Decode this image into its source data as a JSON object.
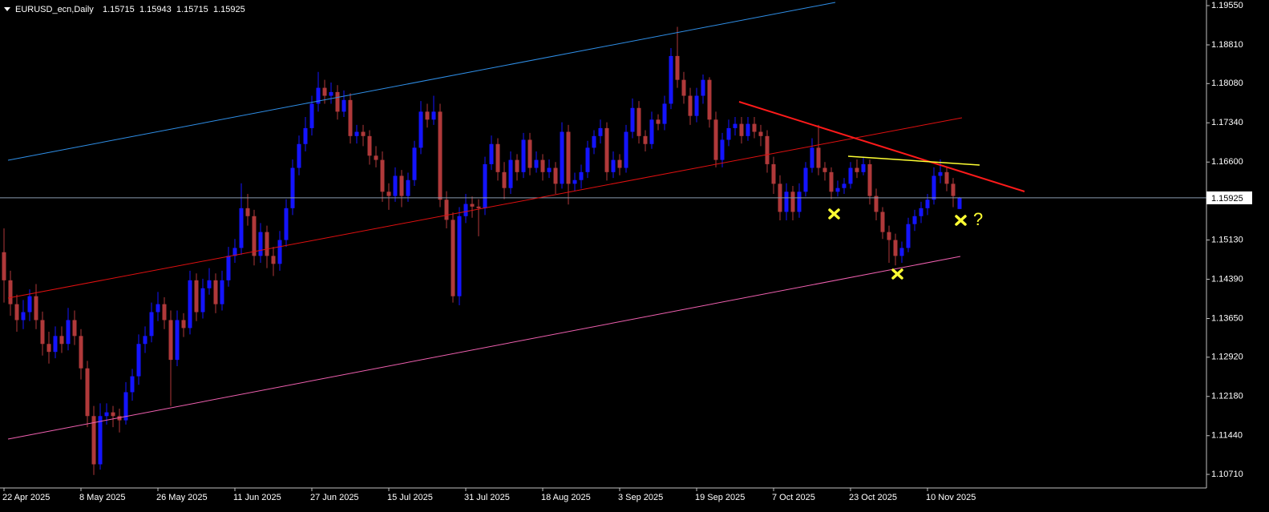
{
  "chart_data": {
    "type": "candlestick",
    "title": "EURUSD_ecn,Daily",
    "annotation": "?",
    "up_color": "#1414ff",
    "down_color": "#b0393a",
    "price_line_color": "#8a9bb0",
    "categories": [
      "22 Apr 2025",
      null,
      null,
      null,
      null,
      null,
      null,
      null,
      null,
      null,
      null,
      null,
      "8 May 2025",
      null,
      null,
      null,
      null,
      null,
      null,
      null,
      null,
      null,
      null,
      null,
      "26 May 2025",
      null,
      null,
      null,
      null,
      null,
      null,
      null,
      null,
      null,
      null,
      null,
      "11 Jun 2025",
      null,
      null,
      null,
      null,
      null,
      null,
      null,
      null,
      null,
      null,
      null,
      "27 Jun 2025",
      null,
      null,
      null,
      null,
      null,
      null,
      null,
      null,
      null,
      null,
      null,
      "15 Jul 2025",
      null,
      null,
      null,
      null,
      null,
      null,
      null,
      null,
      null,
      null,
      null,
      "31 Jul 2025",
      null,
      null,
      null,
      null,
      null,
      null,
      null,
      null,
      null,
      null,
      null,
      "18 Aug 2025",
      null,
      null,
      null,
      null,
      null,
      null,
      null,
      null,
      null,
      null,
      null,
      "3 Sep 2025",
      null,
      null,
      null,
      null,
      null,
      null,
      null,
      null,
      null,
      null,
      null,
      "19 Sep 2025",
      null,
      null,
      null,
      null,
      null,
      null,
      null,
      null,
      null,
      null,
      null,
      "7 Oct 2025",
      null,
      null,
      null,
      null,
      null,
      null,
      null,
      null,
      null,
      null,
      null,
      "23 Oct 2025",
      null,
      null,
      null,
      null,
      null,
      null,
      null,
      null,
      null,
      null,
      null,
      "10 Nov 2025",
      null,
      null,
      null,
      null,
      null
    ],
    "candles": [
      [
        1.149,
        1.1535,
        1.1395,
        1.1437
      ],
      [
        1.1437,
        1.1455,
        1.137,
        1.1392
      ],
      [
        1.1392,
        1.141,
        1.134,
        1.1362
      ],
      [
        1.1362,
        1.14,
        1.1345,
        1.1377
      ],
      [
        1.1377,
        1.142,
        1.136,
        1.1407
      ],
      [
        1.1407,
        1.143,
        1.1345,
        1.1362
      ],
      [
        1.1362,
        1.1378,
        1.1295,
        1.1317
      ],
      [
        1.1317,
        1.134,
        1.128,
        1.1302
      ],
      [
        1.1302,
        1.135,
        1.129,
        1.1332
      ],
      [
        1.1332,
        1.135,
        1.13,
        1.1317
      ],
      [
        1.1317,
        1.1385,
        1.1305,
        1.1362
      ],
      [
        1.1362,
        1.138,
        1.1315,
        1.1332
      ],
      [
        1.1332,
        1.1345,
        1.125,
        1.1271
      ],
      [
        1.1271,
        1.1285,
        1.116,
        1.1181
      ],
      [
        1.1181,
        1.12,
        1.107,
        1.109
      ],
      [
        1.109,
        1.1205,
        1.108,
        1.1181
      ],
      [
        1.1181,
        1.1205,
        1.1165,
        1.1188
      ],
      [
        1.1188,
        1.12,
        1.116,
        1.1181
      ],
      [
        1.1181,
        1.1195,
        1.115,
        1.1173
      ],
      [
        1.1173,
        1.1245,
        1.1165,
        1.1226
      ],
      [
        1.1226,
        1.127,
        1.121,
        1.1256
      ],
      [
        1.1256,
        1.1335,
        1.124,
        1.1317
      ],
      [
        1.1317,
        1.135,
        1.13,
        1.1332
      ],
      [
        1.1332,
        1.1395,
        1.132,
        1.1377
      ],
      [
        1.1377,
        1.1415,
        1.136,
        1.1392
      ],
      [
        1.1392,
        1.1405,
        1.1345,
        1.1362
      ],
      [
        1.1362,
        1.138,
        1.12,
        1.1287
      ],
      [
        1.1287,
        1.138,
        1.1275,
        1.1362
      ],
      [
        1.1362,
        1.1375,
        1.133,
        1.1347
      ],
      [
        1.1347,
        1.1455,
        1.1335,
        1.1437
      ],
      [
        1.1437,
        1.145,
        1.136,
        1.1377
      ],
      [
        1.1377,
        1.144,
        1.1365,
        1.1422
      ],
      [
        1.1422,
        1.146,
        1.141,
        1.1437
      ],
      [
        1.1437,
        1.145,
        1.1375,
        1.1392
      ],
      [
        1.1392,
        1.1455,
        1.138,
        1.1437
      ],
      [
        1.1437,
        1.15,
        1.1425,
        1.1483
      ],
      [
        1.1483,
        1.1515,
        1.147,
        1.1498
      ],
      [
        1.1498,
        1.162,
        1.1485,
        1.1573
      ],
      [
        1.1573,
        1.16,
        1.154,
        1.1558
      ],
      [
        1.1558,
        1.157,
        1.1465,
        1.1483
      ],
      [
        1.1483,
        1.1545,
        1.147,
        1.1528
      ],
      [
        1.1528,
        1.154,
        1.146,
        1.1483
      ],
      [
        1.1483,
        1.15,
        1.1445,
        1.1468
      ],
      [
        1.1468,
        1.153,
        1.1455,
        1.1513
      ],
      [
        1.1513,
        1.159,
        1.15,
        1.1573
      ],
      [
        1.1573,
        1.1665,
        1.156,
        1.1649
      ],
      [
        1.1649,
        1.171,
        1.1635,
        1.1694
      ],
      [
        1.1694,
        1.1745,
        1.168,
        1.1724
      ],
      [
        1.1724,
        1.1785,
        1.171,
        1.177
      ],
      [
        1.177,
        1.183,
        1.1755,
        1.18
      ],
      [
        1.18,
        1.1815,
        1.177,
        1.1785
      ],
      [
        1.1785,
        1.181,
        1.177,
        1.1792
      ],
      [
        1.1792,
        1.1805,
        1.174,
        1.1755
      ],
      [
        1.1755,
        1.1795,
        1.1745,
        1.1777
      ],
      [
        1.1777,
        1.179,
        1.1695,
        1.1709
      ],
      [
        1.1709,
        1.173,
        1.1695,
        1.1717
      ],
      [
        1.1717,
        1.173,
        1.169,
        1.1709
      ],
      [
        1.1709,
        1.172,
        1.1655,
        1.1672
      ],
      [
        1.1672,
        1.169,
        1.165,
        1.1664
      ],
      [
        1.1664,
        1.168,
        1.1585,
        1.1604
      ],
      [
        1.1604,
        1.162,
        1.157,
        1.1596
      ],
      [
        1.1596,
        1.165,
        1.1585,
        1.1634
      ],
      [
        1.1634,
        1.1645,
        1.1575,
        1.1596
      ],
      [
        1.1596,
        1.164,
        1.1585,
        1.1626
      ],
      [
        1.1626,
        1.17,
        1.1615,
        1.1687
      ],
      [
        1.1687,
        1.1775,
        1.1675,
        1.1755
      ],
      [
        1.1755,
        1.177,
        1.1725,
        1.174
      ],
      [
        1.174,
        1.1785,
        1.173,
        1.1755
      ],
      [
        1.1755,
        1.177,
        1.1575,
        1.1589
      ],
      [
        1.1589,
        1.1605,
        1.1535,
        1.1551
      ],
      [
        1.1551,
        1.1565,
        1.1395,
        1.1407
      ],
      [
        1.1407,
        1.1575,
        1.139,
        1.1558
      ],
      [
        1.1558,
        1.16,
        1.1545,
        1.1581
      ],
      [
        1.1581,
        1.1595,
        1.1555,
        1.1576
      ],
      [
        1.1576,
        1.159,
        1.152,
        1.1573
      ],
      [
        1.1573,
        1.167,
        1.156,
        1.1656
      ],
      [
        1.1656,
        1.171,
        1.1645,
        1.1694
      ],
      [
        1.1694,
        1.1705,
        1.1625,
        1.1641
      ],
      [
        1.1641,
        1.166,
        1.159,
        1.1611
      ],
      [
        1.1611,
        1.168,
        1.16,
        1.1664
      ],
      [
        1.1664,
        1.1675,
        1.1625,
        1.1641
      ],
      [
        1.1641,
        1.1715,
        1.163,
        1.1702
      ],
      [
        1.1702,
        1.1715,
        1.1635,
        1.1649
      ],
      [
        1.1649,
        1.168,
        1.164,
        1.1664
      ],
      [
        1.1664,
        1.1675,
        1.1625,
        1.1641
      ],
      [
        1.1641,
        1.1665,
        1.163,
        1.1649
      ],
      [
        1.1649,
        1.166,
        1.16,
        1.1619
      ],
      [
        1.1619,
        1.1735,
        1.161,
        1.1717
      ],
      [
        1.1717,
        1.173,
        1.158,
        1.1619
      ],
      [
        1.1619,
        1.164,
        1.1605,
        1.1626
      ],
      [
        1.1626,
        1.1655,
        1.161,
        1.1641
      ],
      [
        1.1641,
        1.17,
        1.163,
        1.1687
      ],
      [
        1.1687,
        1.172,
        1.1675,
        1.1709
      ],
      [
        1.1709,
        1.174,
        1.1695,
        1.1724
      ],
      [
        1.1724,
        1.1735,
        1.1625,
        1.1641
      ],
      [
        1.1641,
        1.168,
        1.163,
        1.1664
      ],
      [
        1.1664,
        1.1675,
        1.1635,
        1.1649
      ],
      [
        1.1649,
        1.173,
        1.164,
        1.1717
      ],
      [
        1.1717,
        1.178,
        1.1705,
        1.1762
      ],
      [
        1.1762,
        1.1775,
        1.1695,
        1.1709
      ],
      [
        1.1709,
        1.172,
        1.168,
        1.1694
      ],
      [
        1.1694,
        1.1755,
        1.1685,
        1.174
      ],
      [
        1.174,
        1.175,
        1.172,
        1.1732
      ],
      [
        1.1732,
        1.1785,
        1.172,
        1.177
      ],
      [
        1.177,
        1.1875,
        1.176,
        1.186
      ],
      [
        1.186,
        1.1915,
        1.18,
        1.1815
      ],
      [
        1.1815,
        1.183,
        1.177,
        1.1785
      ],
      [
        1.1785,
        1.18,
        1.173,
        1.1747
      ],
      [
        1.1747,
        1.18,
        1.1735,
        1.1785
      ],
      [
        1.1785,
        1.1825,
        1.177,
        1.1815
      ],
      [
        1.1815,
        1.182,
        1.1725,
        1.174
      ],
      [
        1.174,
        1.1755,
        1.165,
        1.1664
      ],
      [
        1.1664,
        1.1715,
        1.165,
        1.1702
      ],
      [
        1.1702,
        1.174,
        1.169,
        1.1724
      ],
      [
        1.1724,
        1.1745,
        1.171,
        1.1732
      ],
      [
        1.1732,
        1.1745,
        1.1695,
        1.1709
      ],
      [
        1.1709,
        1.1745,
        1.17,
        1.1732
      ],
      [
        1.1732,
        1.1745,
        1.1705,
        1.1717
      ],
      [
        1.1717,
        1.173,
        1.169,
        1.1709
      ],
      [
        1.1709,
        1.172,
        1.164,
        1.1656
      ],
      [
        1.1656,
        1.167,
        1.16,
        1.1619
      ],
      [
        1.1619,
        1.1635,
        1.155,
        1.1566
      ],
      [
        1.1566,
        1.162,
        1.155,
        1.1604
      ],
      [
        1.1604,
        1.1615,
        1.155,
        1.1566
      ],
      [
        1.1566,
        1.162,
        1.1555,
        1.1604
      ],
      [
        1.1604,
        1.166,
        1.1595,
        1.1649
      ],
      [
        1.1649,
        1.1705,
        1.164,
        1.1687
      ],
      [
        1.1687,
        1.173,
        1.1635,
        1.1649
      ],
      [
        1.1649,
        1.166,
        1.1625,
        1.1641
      ],
      [
        1.1641,
        1.165,
        1.159,
        1.1604
      ],
      [
        1.1604,
        1.1625,
        1.1595,
        1.1611
      ],
      [
        1.1611,
        1.163,
        1.16,
        1.1619
      ],
      [
        1.1619,
        1.166,
        1.161,
        1.1649
      ],
      [
        1.1649,
        1.1665,
        1.163,
        1.1641
      ],
      [
        1.1641,
        1.167,
        1.1635,
        1.1656
      ],
      [
        1.1656,
        1.1665,
        1.158,
        1.1596
      ],
      [
        1.1596,
        1.161,
        1.155,
        1.1566
      ],
      [
        1.1566,
        1.1575,
        1.1515,
        1.1528
      ],
      [
        1.1528,
        1.154,
        1.147,
        1.1513
      ],
      [
        1.1513,
        1.1525,
        1.1465,
        1.1483
      ],
      [
        1.1483,
        1.151,
        1.147,
        1.1498
      ],
      [
        1.1498,
        1.1555,
        1.149,
        1.1543
      ],
      [
        1.1543,
        1.157,
        1.153,
        1.1558
      ],
      [
        1.1558,
        1.1585,
        1.1545,
        1.1573
      ],
      [
        1.1573,
        1.16,
        1.156,
        1.1589
      ],
      [
        1.1589,
        1.165,
        1.158,
        1.1634
      ],
      [
        1.1634,
        1.1665,
        1.162,
        1.1641
      ],
      [
        1.1641,
        1.165,
        1.1605,
        1.1619
      ],
      [
        1.1619,
        1.163,
        1.1575,
        1.1596
      ],
      [
        1.15715,
        1.15943,
        1.15715,
        1.15925
      ]
    ],
    "ylim": [
      1.10454,
      1.19656
    ],
    "yticks": [
      {
        "value": 1.1955,
        "label": "1.19550"
      },
      {
        "value": 1.1881,
        "label": "1.18810"
      },
      {
        "value": 1.1808,
        "label": "1.18080"
      },
      {
        "value": 1.1734,
        "label": "1.17340"
      },
      {
        "value": 1.166,
        "label": "1.16600"
      },
      {
        "value": 1.1513,
        "label": "1.15130"
      },
      {
        "value": 1.1439,
        "label": "1.14390"
      },
      {
        "value": 1.1365,
        "label": "1.13650"
      },
      {
        "value": 1.1292,
        "label": "1.12920"
      },
      {
        "value": 1.1218,
        "label": "1.12180"
      },
      {
        "value": 1.1144,
        "label": "1.11440"
      },
      {
        "value": 1.1071,
        "label": "1.10710"
      }
    ],
    "grid": false
  }
}
